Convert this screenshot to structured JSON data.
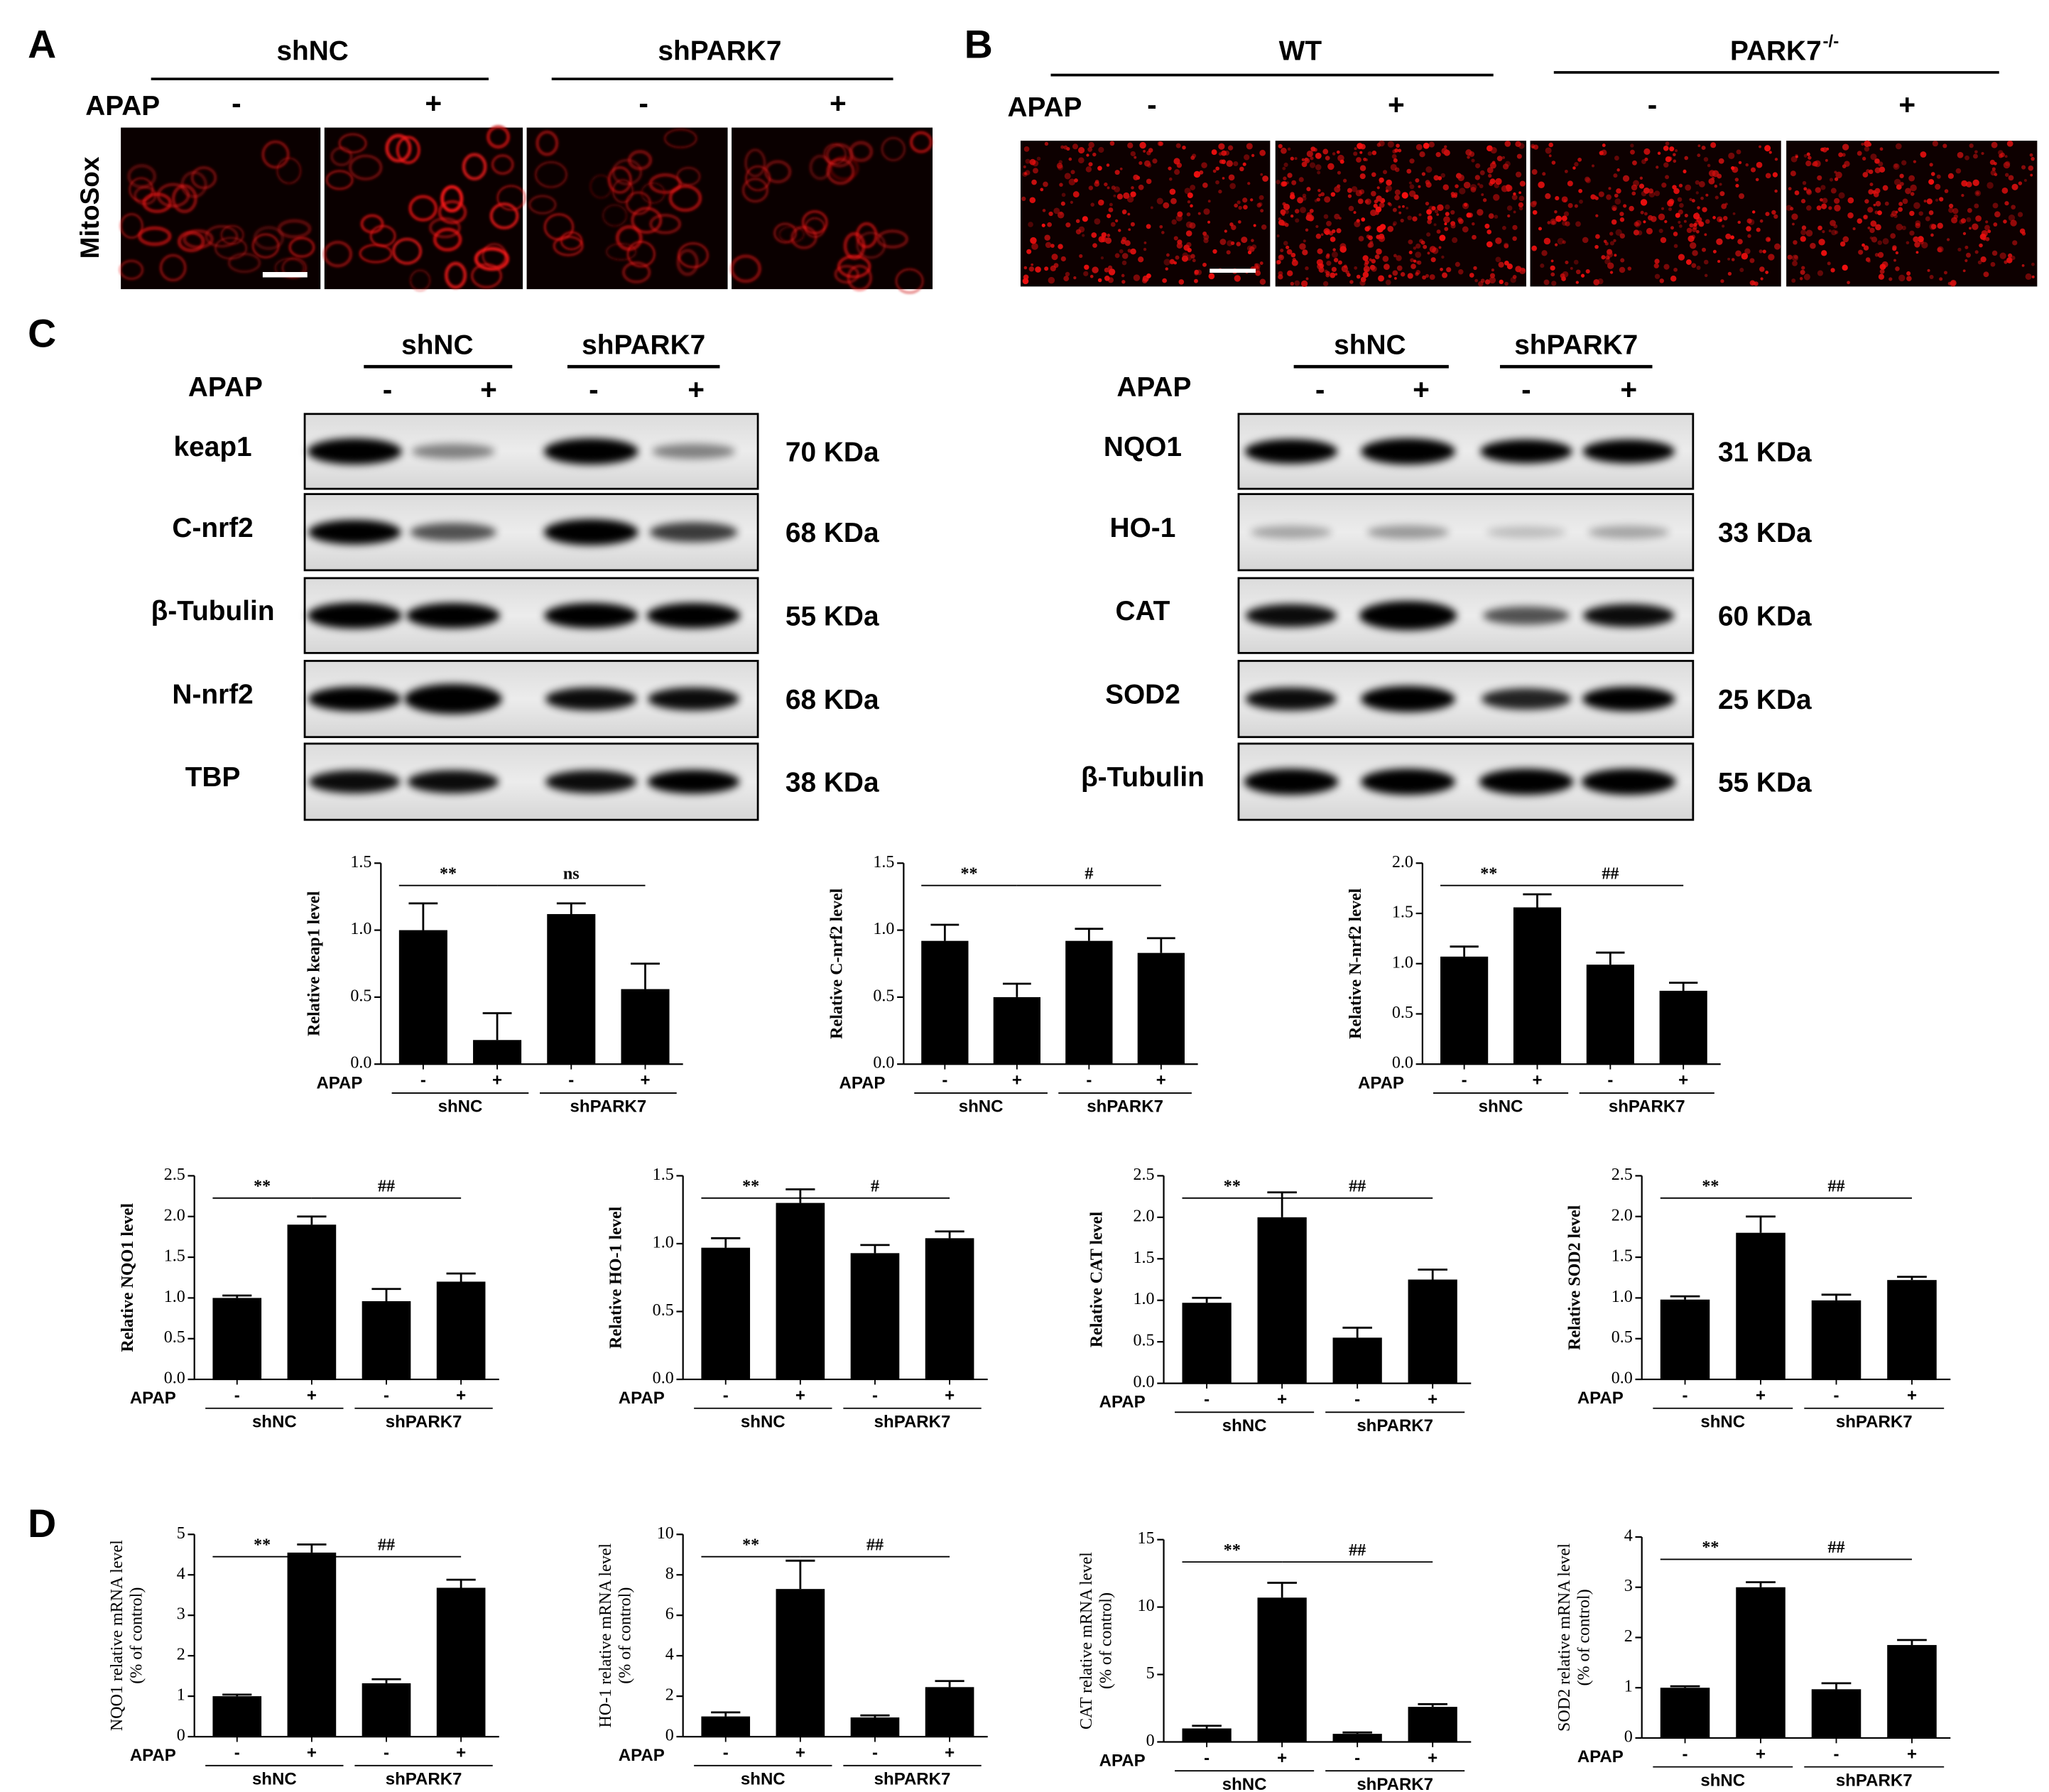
{
  "panels": {
    "A": {
      "label": "A",
      "groups": [
        "shNC",
        "shPARK7"
      ],
      "treatment": "APAP",
      "signs": [
        "-",
        "+",
        "-",
        "+"
      ],
      "stain": "MitoSox"
    },
    "B": {
      "label": "B",
      "groups": [
        {
          "text": "WT"
        },
        {
          "text": "PARK7",
          "sup": "-/-"
        }
      ],
      "treatment": "APAP",
      "signs": [
        "-",
        "+",
        "-",
        "+"
      ]
    },
    "C": {
      "label": "C",
      "blots": [
        {
          "groups": [
            "shNC",
            "shPARK7"
          ],
          "treatment": "APAP",
          "signs": [
            "-",
            "+",
            "-",
            "+"
          ],
          "rows": [
            {
              "name": "keap1",
              "size": "70 KDa"
            },
            {
              "name": "C-nrf2",
              "size": "68 KDa"
            },
            {
              "name": "β-Tubulin",
              "size": "55 KDa"
            },
            {
              "name": "N-nrf2",
              "size": "68 KDa"
            },
            {
              "name": "TBP",
              "size": "38 KDa"
            }
          ]
        },
        {
          "groups": [
            "shNC",
            "shPARK7"
          ],
          "treatment": "APAP",
          "signs": [
            "-",
            "+",
            "-",
            "+"
          ],
          "rows": [
            {
              "name": "NQO1",
              "size": "31 KDa"
            },
            {
              "name": "HO-1",
              "size": "33 KDa"
            },
            {
              "name": "CAT",
              "size": "60 KDa"
            },
            {
              "name": "SOD2",
              "size": "25 KDa"
            },
            {
              "name": "β-Tubulin",
              "size": "55 KDa"
            }
          ]
        }
      ]
    },
    "D": {
      "label": "D"
    }
  },
  "chart_data": [
    {
      "type": "bar",
      "y_label": "Relative keap1 level",
      "x_label": "APAP",
      "categories": [
        "-",
        "+",
        "-",
        "+"
      ],
      "groups": [
        "shNC",
        "shPARK7"
      ],
      "values": [
        1.0,
        0.18,
        1.12,
        0.56
      ],
      "errors": [
        0.2,
        0.2,
        0.08,
        0.19
      ],
      "color": "#000000",
      "ylim": [
        0,
        1.5
      ],
      "yticks": [
        {
          "value": 0,
          "label": "0.0"
        },
        0.5,
        {
          "value": 1,
          "label": "1.0"
        },
        1.5
      ],
      "annotations": [
        "**",
        "ns"
      ]
    },
    {
      "type": "bar",
      "y_label": "Relative C-nrf2 level",
      "x_label": "APAP",
      "categories": [
        "-",
        "+",
        "-",
        "+"
      ],
      "groups": [
        "shNC",
        "shPARK7"
      ],
      "values": [
        0.92,
        0.5,
        0.92,
        0.83
      ],
      "errors": [
        0.12,
        0.1,
        0.09,
        0.11
      ],
      "color": "#000000",
      "ylim": [
        0,
        1.5
      ],
      "yticks": [
        {
          "value": 0,
          "label": "0.0"
        },
        0.5,
        {
          "value": 1,
          "label": "1.0"
        },
        1.5
      ],
      "annotations": [
        "**",
        "#"
      ]
    },
    {
      "type": "bar",
      "y_label": "Relative N-nrf2 level",
      "x_label": "APAP",
      "categories": [
        "-",
        "+",
        "-",
        "+"
      ],
      "groups": [
        "shNC",
        "shPARK7"
      ],
      "values": [
        1.07,
        1.56,
        0.99,
        0.73
      ],
      "errors": [
        0.1,
        0.13,
        0.12,
        0.08
      ],
      "color": "#000000",
      "ylim": [
        0,
        2
      ],
      "yticks": [
        {
          "value": 0,
          "label": "0.0"
        },
        0.5,
        {
          "value": 1,
          "label": "1.0"
        },
        1.5,
        {
          "value": 2,
          "label": "2.0"
        }
      ],
      "annotations": [
        "**",
        "##"
      ]
    },
    {
      "type": "bar",
      "y_label": "Relative NQO1 level",
      "x_label": "APAP",
      "categories": [
        "-",
        "+",
        "-",
        "+"
      ],
      "groups": [
        "shNC",
        "shPARK7"
      ],
      "values": [
        1.0,
        1.9,
        0.96,
        1.2
      ],
      "errors": [
        0.03,
        0.1,
        0.15,
        0.1
      ],
      "color": "#000000",
      "ylim": [
        0,
        2.5
      ],
      "yticks": [
        {
          "value": 0,
          "label": "0.0"
        },
        0.5,
        {
          "value": 1,
          "label": "1.0"
        },
        1.5,
        {
          "value": 2,
          "label": "2.0"
        },
        2.5
      ],
      "annotations": [
        "**",
        "##"
      ]
    },
    {
      "type": "bar",
      "y_label": "Relative HO-1 level",
      "x_label": "APAP",
      "categories": [
        "-",
        "+",
        "-",
        "+"
      ],
      "groups": [
        "shNC",
        "shPARK7"
      ],
      "values": [
        0.97,
        1.3,
        0.93,
        1.04
      ],
      "errors": [
        0.07,
        0.1,
        0.06,
        0.05
      ],
      "color": "#000000",
      "ylim": [
        0,
        1.5
      ],
      "yticks": [
        {
          "value": 0,
          "label": "0.0"
        },
        0.5,
        {
          "value": 1,
          "label": "1.0"
        },
        1.5
      ],
      "annotations": [
        "**",
        "#"
      ]
    },
    {
      "type": "bar",
      "y_label": "Relative CAT level",
      "x_label": "APAP",
      "categories": [
        "-",
        "+",
        "-",
        "+"
      ],
      "groups": [
        "shNC",
        "shPARK7"
      ],
      "values": [
        0.97,
        2.0,
        0.55,
        1.25
      ],
      "errors": [
        0.06,
        0.3,
        0.12,
        0.12
      ],
      "color": "#000000",
      "ylim": [
        0,
        2.5
      ],
      "yticks": [
        {
          "value": 0,
          "label": "0.0"
        },
        0.5,
        {
          "value": 1,
          "label": "1.0"
        },
        1.5,
        {
          "value": 2,
          "label": "2.0"
        },
        2.5
      ],
      "annotations": [
        "**",
        "##"
      ]
    },
    {
      "type": "bar",
      "y_label": "Relative SOD2 level",
      "x_label": "APAP",
      "categories": [
        "-",
        "+",
        "-",
        "+"
      ],
      "groups": [
        "shNC",
        "shPARK7"
      ],
      "values": [
        0.98,
        1.8,
        0.97,
        1.22
      ],
      "errors": [
        0.04,
        0.2,
        0.07,
        0.04
      ],
      "color": "#000000",
      "ylim": [
        0,
        2.5
      ],
      "yticks": [
        {
          "value": 0,
          "label": "0.0"
        },
        0.5,
        {
          "value": 1,
          "label": "1.0"
        },
        1.5,
        {
          "value": 2,
          "label": "2.0"
        },
        2.5
      ],
      "annotations": [
        "**",
        "##"
      ]
    },
    {
      "type": "bar",
      "y_label": "NQO1 relative mRNA level",
      "y_label_sub": "(% of control)",
      "x_label": "APAP",
      "categories": [
        "-",
        "+",
        "-",
        "+"
      ],
      "groups": [
        "shNC",
        "shPARK7"
      ],
      "values": [
        1.0,
        4.55,
        1.32,
        3.68
      ],
      "errors": [
        0.04,
        0.2,
        0.1,
        0.2
      ],
      "color": "#000000",
      "ylim": [
        0,
        5
      ],
      "yticks": [
        0,
        1,
        2,
        3,
        4,
        5
      ],
      "annotations": [
        "**",
        "##"
      ]
    },
    {
      "type": "bar",
      "y_label": "HO-1 relative mRNA level",
      "y_label_sub": "(% of control)",
      "x_label": "APAP",
      "categories": [
        "-",
        "+",
        "-",
        "+"
      ],
      "groups": [
        "shNC",
        "shPARK7"
      ],
      "values": [
        1.0,
        7.3,
        0.95,
        2.45
      ],
      "errors": [
        0.2,
        1.4,
        0.1,
        0.3
      ],
      "color": "#000000",
      "ylim": [
        0,
        10
      ],
      "yticks": [
        0,
        2,
        4,
        6,
        8,
        10
      ],
      "annotations": [
        "**",
        "##"
      ]
    },
    {
      "type": "bar",
      "y_label": "CAT relative mRNA level",
      "y_label_sub": "(% of control)",
      "x_label": "APAP",
      "categories": [
        "-",
        "+",
        "-",
        "+"
      ],
      "groups": [
        "shNC",
        "shPARK7"
      ],
      "values": [
        1.0,
        10.7,
        0.6,
        2.6
      ],
      "errors": [
        0.2,
        1.1,
        0.1,
        0.2
      ],
      "color": "#000000",
      "ylim": [
        0,
        15
      ],
      "yticks": [
        0,
        5,
        10,
        15
      ],
      "annotations": [
        "**",
        "##"
      ]
    },
    {
      "type": "bar",
      "y_label": "SOD2 relative mRNA level",
      "y_label_sub": "(% of control)",
      "x_label": "APAP",
      "categories": [
        "-",
        "+",
        "-",
        "+"
      ],
      "groups": [
        "shNC",
        "shPARK7"
      ],
      "values": [
        1.0,
        3.0,
        0.97,
        1.85
      ],
      "errors": [
        0.03,
        0.1,
        0.12,
        0.1
      ],
      "color": "#000000",
      "ylim": [
        0,
        4
      ],
      "yticks": [
        0,
        1,
        2,
        3,
        4
      ],
      "annotations": [
        "**",
        "##"
      ]
    }
  ]
}
